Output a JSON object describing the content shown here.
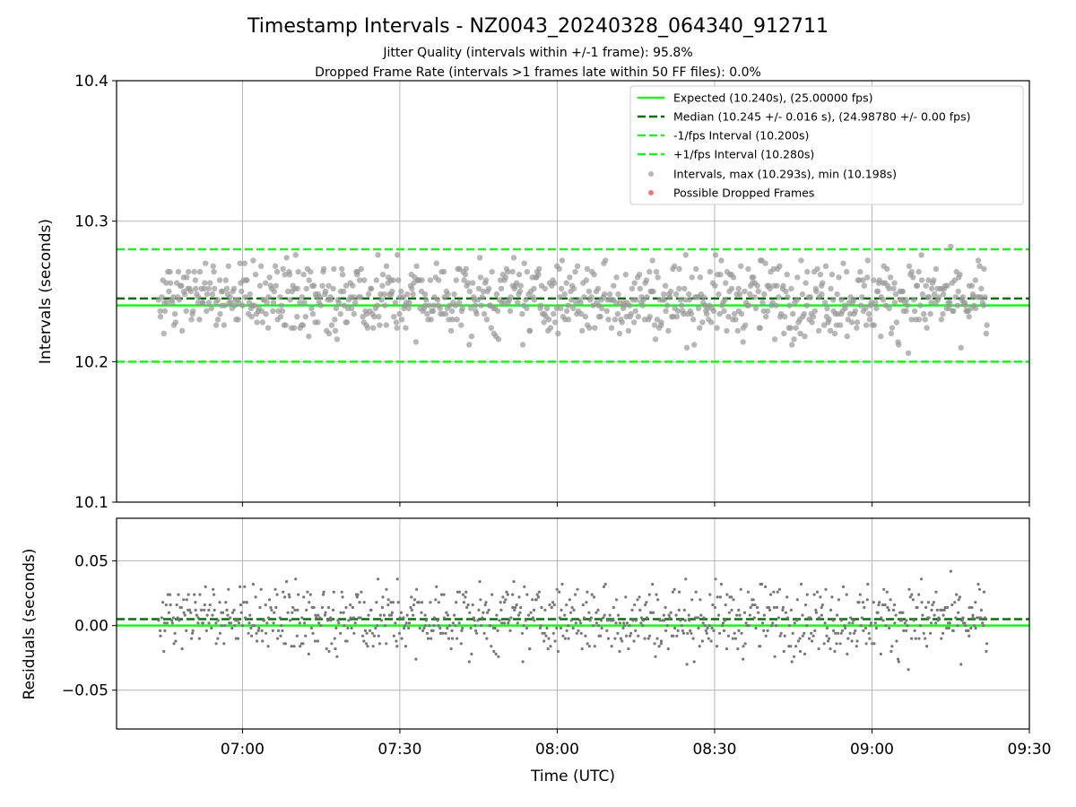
{
  "figure": {
    "title": "Timestamp Intervals - NZ0043_20240328_064340_912711",
    "subtitle_1": "Jitter Quality (intervals within +/-1 frame): 95.8%",
    "subtitle_2": "Dropped Frame Rate (intervals >1 frames late within 50 FF files): 0.0%",
    "xlabel": "Time (UTC)"
  },
  "chart_data": [
    {
      "type": "scatter",
      "name": "intervals",
      "ylabel": "Intervals (seconds)",
      "xlim": [
        "06:36",
        "09:30"
      ],
      "ylim": [
        10.1,
        10.4
      ],
      "x_ticks": [
        "07:00",
        "07:30",
        "08:00",
        "08:30",
        "09:00",
        "09:30"
      ],
      "y_ticks": [
        "10.1",
        "10.2",
        "10.3",
        "10.4"
      ],
      "grid": true,
      "legend_position": "top-right",
      "reference_lines": [
        {
          "label": "Expected (10.240s), (25.00000 fps)",
          "value": 10.24,
          "style": "solid",
          "color": "#22ee22"
        },
        {
          "label": "Median (10.245 +/- 0.016 s), (24.98780 +/- 0.00 fps)",
          "value": 10.245,
          "style": "dashed",
          "color": "#0a6e0a"
        },
        {
          "label": "-1/fps Interval (10.200s)",
          "value": 10.2,
          "style": "dashed",
          "color": "#22ee22"
        },
        {
          "label": "+1/fps Interval (10.280s)",
          "value": 10.28,
          "style": "dashed",
          "color": "#22ee22"
        }
      ],
      "series": [
        {
          "label": "Intervals, max (10.293s), min (10.198s)",
          "color": "#999999",
          "time_range": [
            "06:44",
            "09:22"
          ],
          "y_min": 10.198,
          "y_max": 10.293,
          "center": 10.245,
          "spread": 0.016,
          "count": 920
        },
        {
          "label": "Possible Dropped Frames",
          "color": "#ee5555",
          "count": 0
        }
      ]
    },
    {
      "type": "scatter",
      "name": "residuals",
      "ylabel": "Residuals (seconds)",
      "xlim": [
        "06:36",
        "09:30"
      ],
      "ylim": [
        -0.08,
        0.083
      ],
      "x_ticks": [
        "07:00",
        "07:30",
        "08:00",
        "08:30",
        "09:00",
        "09:30"
      ],
      "y_ticks": [
        "0.05",
        "0.00",
        "−0.05"
      ],
      "y_tick_values": [
        0.05,
        0.0,
        -0.05
      ],
      "grid": true,
      "reference_lines": [
        {
          "value": 0.0,
          "style": "solid",
          "color": "#22ee22"
        },
        {
          "value": 0.005,
          "style": "dashed",
          "color": "#0a6e0a"
        }
      ],
      "series": [
        {
          "color": "#777777",
          "time_range": [
            "06:44",
            "09:22"
          ],
          "y_min": -0.042,
          "y_max": 0.053,
          "center": 0.005,
          "spread": 0.016,
          "count": 920
        }
      ]
    }
  ]
}
